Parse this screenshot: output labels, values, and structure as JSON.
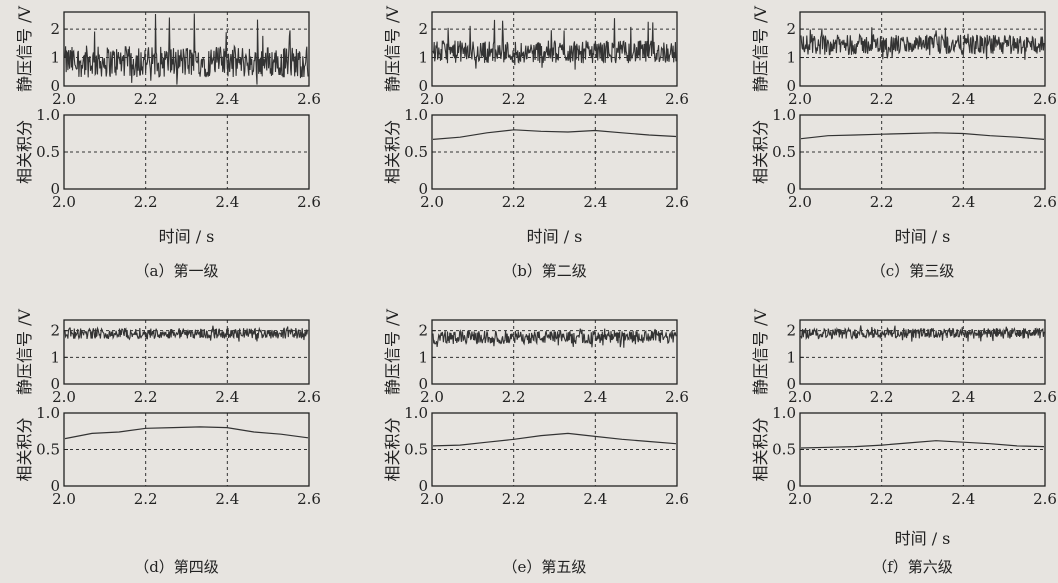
{
  "panels": [
    {
      "caption": "（a）第一级",
      "top": {
        "ylabel": "静压信号 /V",
        "yticks": [
          "0",
          "1",
          "2"
        ],
        "ylim": [
          0,
          2.6
        ],
        "mean": 0.85,
        "spread": 0.55,
        "spikes": 2.6
      },
      "bottom": {
        "ylabel": "相关积分",
        "yticks": [
          "0",
          "0.5",
          "1.0"
        ],
        "ylim": [
          0,
          1.0
        ],
        "values": []
      },
      "xlabel": "时间 / s",
      "xticks": [
        "2.0",
        "2.2",
        "2.4",
        "2.6"
      ]
    },
    {
      "caption": "（b）第二级",
      "top": {
        "ylabel": "静压信号 /V",
        "yticks": [
          "0",
          "1",
          "2"
        ],
        "ylim": [
          0,
          2.6
        ],
        "mean": 1.2,
        "spread": 0.4,
        "spikes": 2.4
      },
      "bottom": {
        "ylabel": "相关积分",
        "yticks": [
          "0",
          "0.5",
          "1.0"
        ],
        "ylim": [
          0,
          1.0
        ],
        "values": [
          0.67,
          0.7,
          0.76,
          0.8,
          0.78,
          0.77,
          0.79,
          0.76,
          0.73,
          0.71
        ]
      },
      "xlabel": "时间 / s",
      "xticks": [
        "2.0",
        "2.2",
        "2.4",
        "2.6"
      ]
    },
    {
      "caption": "（c）第三级",
      "top": {
        "ylabel": "静压信号 /V",
        "yticks": [
          "0",
          "1",
          "2"
        ],
        "ylim": [
          0,
          2.6
        ],
        "mean": 1.45,
        "spread": 0.35,
        "spikes": 2.2
      },
      "bottom": {
        "ylabel": "相关积分",
        "yticks": [
          "0",
          "0.5",
          "1.0"
        ],
        "ylim": [
          0,
          1.0
        ],
        "values": [
          0.68,
          0.72,
          0.73,
          0.74,
          0.75,
          0.76,
          0.75,
          0.72,
          0.7,
          0.67
        ]
      },
      "xlabel": "时间 / s",
      "xticks": [
        "2.0",
        "2.2",
        "2.4",
        "2.6"
      ]
    },
    {
      "caption": "（d）第四级",
      "top": {
        "ylabel": "静压信号 /V",
        "yticks": [
          "0",
          "1",
          "2"
        ],
        "ylim": [
          0,
          2.4
        ],
        "mean": 1.9,
        "spread": 0.2,
        "spikes": 2.2
      },
      "bottom": {
        "ylabel": "相关积分",
        "yticks": [
          "0",
          "0.5",
          "1.0"
        ],
        "ylim": [
          0,
          1.0
        ],
        "values": [
          0.65,
          0.72,
          0.74,
          0.79,
          0.8,
          0.81,
          0.8,
          0.74,
          0.71,
          0.66
        ]
      },
      "xlabel": "",
      "xticks": [
        "2.0",
        "2.2",
        "2.4",
        "2.6"
      ]
    },
    {
      "caption": "（e）第五级",
      "top": {
        "ylabel": "静压信号 /V",
        "yticks": [
          "0",
          "1",
          "2"
        ],
        "ylim": [
          0,
          2.4
        ],
        "mean": 1.75,
        "spread": 0.25,
        "spikes": 2.1
      },
      "bottom": {
        "ylabel": "相关积分",
        "yticks": [
          "0",
          "0.5",
          "1.0"
        ],
        "ylim": [
          0,
          1.0
        ],
        "values": [
          0.55,
          0.56,
          0.6,
          0.64,
          0.69,
          0.72,
          0.68,
          0.64,
          0.61,
          0.58
        ]
      },
      "xlabel": "",
      "xticks": [
        "2.0",
        "2.2",
        "2.4",
        "2.6"
      ]
    },
    {
      "caption": "（f）第六级",
      "top": {
        "ylabel": "静压信号 /V",
        "yticks": [
          "0",
          "1",
          "2"
        ],
        "ylim": [
          0,
          2.4
        ],
        "mean": 1.9,
        "spread": 0.2,
        "spikes": 2.2
      },
      "bottom": {
        "ylabel": "相关积分",
        "yticks": [
          "0",
          "0.5",
          "1.0"
        ],
        "ylim": [
          0,
          1.0
        ],
        "values": [
          0.52,
          0.53,
          0.54,
          0.56,
          0.59,
          0.62,
          0.6,
          0.58,
          0.55,
          0.54
        ]
      },
      "xlabel": "时间 / s",
      "xticks": [
        "2.0",
        "2.2",
        "2.4",
        "2.6"
      ]
    }
  ]
}
